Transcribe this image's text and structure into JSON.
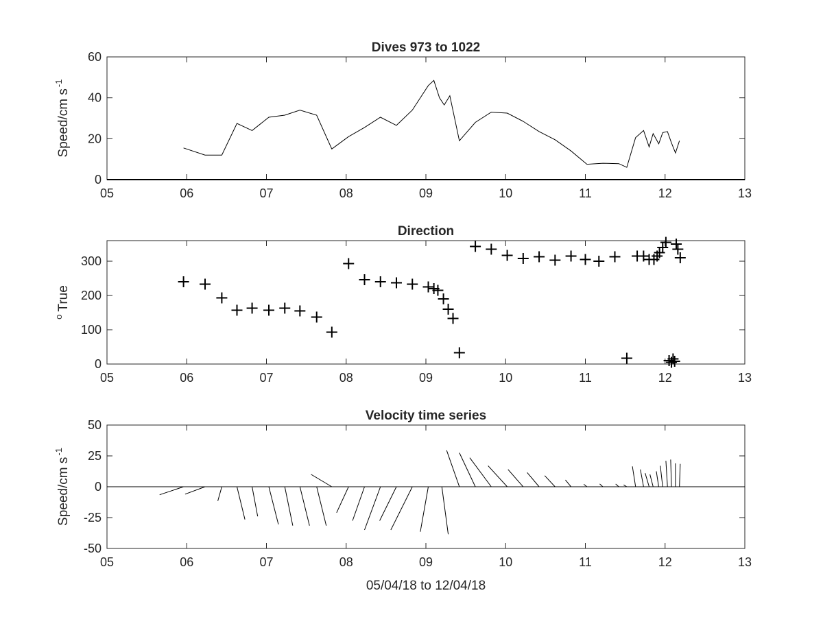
{
  "chart_data": [
    {
      "type": "line",
      "title": "Dives 973 to 1022",
      "ylabel": "Speed/cm s",
      "ylabel_sup": "-1",
      "xlim": [
        5,
        13
      ],
      "ylim": [
        0,
        60
      ],
      "xticks": [
        "05",
        "06",
        "07",
        "08",
        "09",
        "10",
        "11",
        "12",
        "13"
      ],
      "yticks": [
        "0",
        "20",
        "40",
        "60"
      ],
      "series": [
        {
          "x": [
            5.96,
            6.23,
            6.44,
            6.63,
            6.82,
            7.03,
            7.23,
            7.42,
            7.63,
            7.82,
            8.03,
            8.23,
            8.43,
            8.63,
            8.83,
            9.03,
            9.1,
            9.17,
            9.23,
            9.3,
            9.42,
            9.62,
            9.82,
            10.02,
            10.22,
            10.42,
            10.62,
            10.82,
            11.02,
            11.22,
            11.42,
            11.52,
            11.63,
            11.73,
            11.8,
            11.85,
            11.92,
            11.97,
            12.03,
            12.08,
            12.13,
            12.18
          ],
          "y": [
            15.5,
            12,
            12,
            27.5,
            24,
            30.5,
            31.5,
            34,
            31.5,
            15,
            21,
            25.5,
            30.5,
            26.5,
            34,
            46,
            48.5,
            40,
            36.5,
            41,
            19,
            28,
            33,
            32.5,
            28.5,
            23.5,
            19.5,
            14,
            7.5,
            8,
            7.8,
            6,
            20.5,
            24,
            16,
            22.5,
            17.5,
            23,
            23.5,
            18,
            13,
            19
          ]
        }
      ]
    },
    {
      "type": "scatter",
      "title": "Direction",
      "ylabel": "True",
      "ylabel_sup": "o",
      "xlim": [
        5,
        13
      ],
      "ylim": [
        0,
        360
      ],
      "xticks": [
        "05",
        "06",
        "07",
        "08",
        "09",
        "10",
        "11",
        "12",
        "13"
      ],
      "yticks": [
        "0",
        "100",
        "200",
        "300"
      ],
      "marker": "+",
      "series": [
        {
          "x": [
            5.96,
            6.23,
            6.44,
            6.63,
            6.82,
            7.03,
            7.23,
            7.42,
            7.63,
            7.82,
            8.03,
            8.23,
            8.43,
            8.63,
            8.83,
            9.03,
            9.1,
            9.15,
            9.22,
            9.28,
            9.34,
            9.42,
            9.62,
            9.82,
            10.02,
            10.22,
            10.42,
            10.62,
            10.82,
            11.0,
            11.17,
            11.37,
            11.52,
            11.65,
            11.73,
            11.8,
            11.86,
            11.9,
            11.93,
            11.97,
            12.01,
            12.05,
            12.08,
            12.1,
            12.12,
            12.14,
            12.16,
            12.19
          ],
          "y": [
            240,
            233,
            193,
            157,
            163,
            157,
            163,
            155,
            137,
            93,
            293,
            246,
            240,
            237,
            233,
            225,
            220,
            215,
            190,
            160,
            133,
            33,
            343,
            335,
            317,
            308,
            313,
            303,
            315,
            305,
            300,
            313,
            17,
            315,
            315,
            305,
            305,
            315,
            325,
            340,
            355,
            10,
            5,
            15,
            8,
            350,
            335,
            310
          ]
        }
      ]
    },
    {
      "type": "stick",
      "title": "Velocity time series",
      "ylabel": "Speed/cm s",
      "ylabel_sup": "-1",
      "xlabel": "05/04/18 to 12/04/18",
      "xlim": [
        5,
        13
      ],
      "ylim": [
        -50,
        50
      ],
      "xticks": [
        "05",
        "06",
        "07",
        "08",
        "09",
        "10",
        "11",
        "12",
        "13"
      ],
      "yticks": [
        "-50",
        "-25",
        "0",
        "25",
        "50"
      ],
      "series": [
        {
          "x": [
            5.96,
            6.23,
            6.44,
            6.63,
            6.82,
            7.03,
            7.23,
            7.42,
            7.63,
            7.82,
            8.03,
            8.23,
            8.43,
            8.63,
            8.83,
            9.03,
            9.2,
            9.42,
            9.62,
            9.82,
            10.02,
            10.22,
            10.42,
            10.62,
            10.82,
            11.02,
            11.22,
            11.42,
            11.52,
            11.63,
            11.73,
            11.8,
            11.85,
            11.92,
            11.97,
            12.03,
            12.08,
            12.13,
            12.18
          ],
          "u": [
            -0.3,
            -0.25,
            -0.05,
            0.1,
            0.07,
            0.12,
            0.1,
            0.12,
            0.12,
            -0.26,
            -0.15,
            -0.15,
            -0.2,
            -0.21,
            -0.27,
            -0.1,
            0.08,
            -0.16,
            -0.2,
            -0.27,
            -0.24,
            -0.19,
            -0.15,
            -0.13,
            -0.07,
            -0.04,
            -0.04,
            -0.04,
            -0.04,
            -0.04,
            -0.04,
            -0.05,
            -0.04,
            -0.03,
            -0.03,
            -0.02,
            -0.01,
            0,
            0.01
          ],
          "v": [
            -6.5,
            -6,
            -11.5,
            -26.5,
            -24,
            -30.5,
            -31.5,
            -31.5,
            -31.5,
            10,
            -21,
            -27.5,
            -35,
            -27.5,
            -35,
            -36.5,
            -38.5,
            29.5,
            27.5,
            23.5,
            17,
            14,
            11.5,
            9,
            5.5,
            2,
            2.3,
            2.2,
            1.5,
            16.5,
            14,
            11,
            10,
            12.5,
            17,
            21,
            22,
            19,
            18.5
          ]
        }
      ]
    }
  ]
}
